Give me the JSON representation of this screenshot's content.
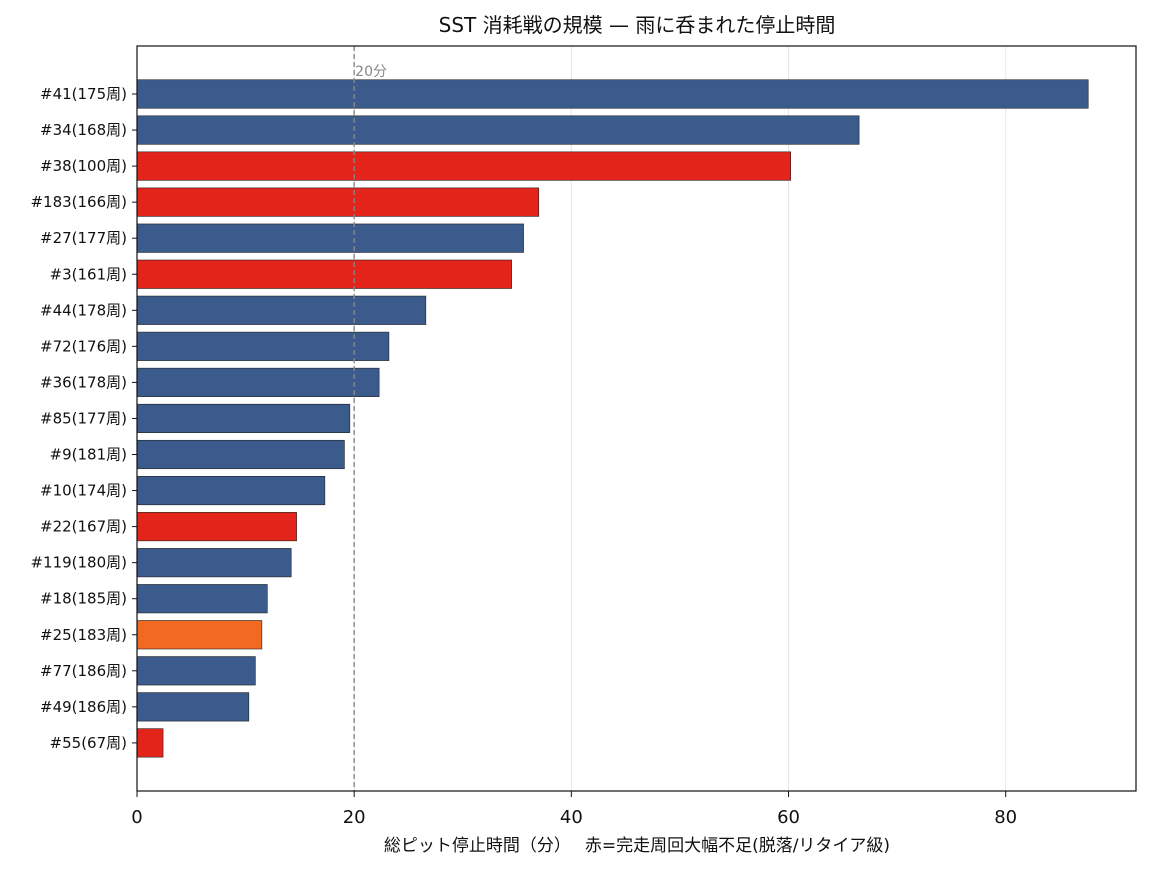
{
  "chart_data": {
    "type": "bar",
    "orientation": "horizontal",
    "title": "SST 消耗戦の規模 — 雨に呑まれた停止時間",
    "xlabel": "総ピット停止時間（分）　 赤=完走周回大幅不足(脱落/リタイア級)",
    "ylabel": "",
    "xlim": [
      0,
      92
    ],
    "xticks": [
      0,
      20,
      40,
      60,
      80
    ],
    "grid": "x",
    "legend": "none",
    "reference_line": {
      "value": 20,
      "label": "20分",
      "color": "#888888",
      "style": "dashed"
    },
    "colors": {
      "normal": "#3b5b8c",
      "shortfall": "#e3241b",
      "partial": "#f26a21"
    },
    "bars": [
      {
        "label": "#41(175周)",
        "value": 87.6,
        "status": "normal"
      },
      {
        "label": "#34(168周)",
        "value": 66.5,
        "status": "normal"
      },
      {
        "label": "#38(100周)",
        "value": 60.2,
        "status": "shortfall"
      },
      {
        "label": "#183(166周)",
        "value": 37.0,
        "status": "shortfall"
      },
      {
        "label": "#27(177周)",
        "value": 35.6,
        "status": "normal"
      },
      {
        "label": "#3(161周)",
        "value": 34.5,
        "status": "shortfall"
      },
      {
        "label": "#44(178周)",
        "value": 26.6,
        "status": "normal"
      },
      {
        "label": "#72(176周)",
        "value": 23.2,
        "status": "normal"
      },
      {
        "label": "#36(178周)",
        "value": 22.3,
        "status": "normal"
      },
      {
        "label": "#85(177周)",
        "value": 19.6,
        "status": "normal"
      },
      {
        "label": "#9(181周)",
        "value": 19.1,
        "status": "normal"
      },
      {
        "label": "#10(174周)",
        "value": 17.3,
        "status": "normal"
      },
      {
        "label": "#22(167周)",
        "value": 14.7,
        "status": "shortfall"
      },
      {
        "label": "#119(180周)",
        "value": 14.2,
        "status": "normal"
      },
      {
        "label": "#18(185周)",
        "value": 12.0,
        "status": "normal"
      },
      {
        "label": "#25(183周)",
        "value": 11.5,
        "status": "partial"
      },
      {
        "label": "#77(186周)",
        "value": 10.9,
        "status": "normal"
      },
      {
        "label": "#49(186周)",
        "value": 10.3,
        "status": "normal"
      },
      {
        "label": "#55(67周)",
        "value": 2.4,
        "status": "shortfall"
      }
    ]
  }
}
